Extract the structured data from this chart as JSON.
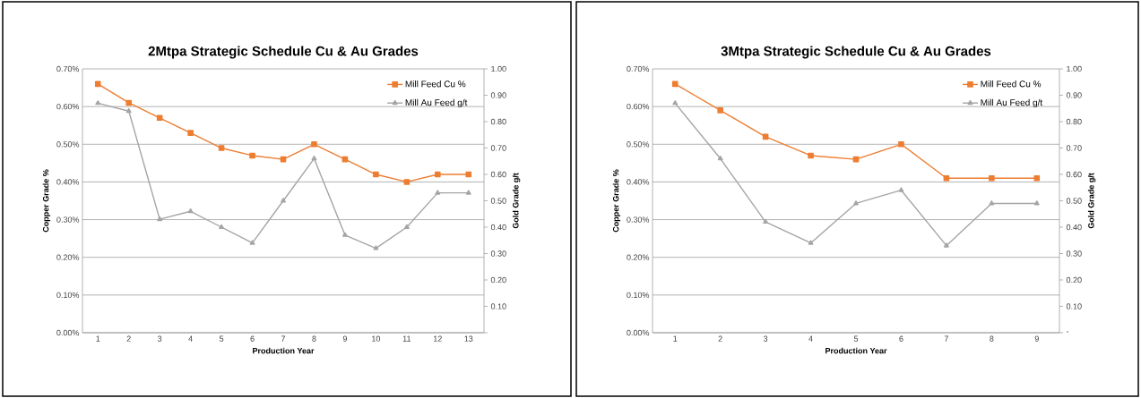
{
  "chart_data": [
    {
      "type": "line",
      "title": "2Mtpa Strategic Schedule Cu & Au Grades",
      "xlabel": "Production Year",
      "ylabel": "Copper Grade %",
      "y2label": "Gold Grade g/t",
      "categories": [
        "1",
        "2",
        "3",
        "4",
        "5",
        "6",
        "7",
        "8",
        "9",
        "10",
        "11",
        "12",
        "13"
      ],
      "series": [
        {
          "name": "Mill Feed Cu %",
          "color": "#ed7d31",
          "marker": "square",
          "values": [
            0.66,
            0.61,
            0.57,
            0.53,
            0.49,
            0.47,
            0.46,
            0.5,
            0.46,
            0.42,
            0.4,
            0.42,
            0.42
          ]
        },
        {
          "name": "Mill Au Feed g/t",
          "color": "#a5a5a5",
          "marker": "triangle",
          "axis": "y2",
          "values": [
            0.87,
            0.84,
            0.43,
            0.46,
            0.4,
            0.34,
            0.5,
            0.66,
            0.37,
            0.32,
            0.4,
            0.53,
            0.53
          ]
        }
      ],
      "ylim": [
        0,
        0.7
      ],
      "yticks": [
        {
          "value": 0,
          "label": "0.00%"
        },
        {
          "value": 0.1,
          "label": "0.10%"
        },
        {
          "value": 0.2,
          "label": "0.20%"
        },
        {
          "value": 0.3,
          "label": "0.30%"
        },
        {
          "value": 0.4,
          "label": "0.40%"
        },
        {
          "value": 0.5,
          "label": "0.50%"
        },
        {
          "value": 0.6,
          "label": "0.60%"
        },
        {
          "value": 0.7,
          "label": "0.70%"
        }
      ],
      "y2lim": [
        0,
        1
      ],
      "y2ticks": [
        {
          "value": 0,
          "label": null
        },
        {
          "value": 0.1,
          "label": "0.10"
        },
        {
          "value": 0.2,
          "label": "0.20"
        },
        {
          "value": 0.3,
          "label": "0.30"
        },
        {
          "value": 0.4,
          "label": "0.40"
        },
        {
          "value": 0.5,
          "label": "0.50"
        },
        {
          "value": 0.6,
          "label": "0.60"
        },
        {
          "value": 0.7,
          "label": "0.70"
        },
        {
          "value": 0.8,
          "label": "0.80"
        },
        {
          "value": 0.9,
          "label": "0.90"
        },
        {
          "value": 1,
          "label": "1.00"
        }
      ],
      "grid": "y",
      "legend": "top right"
    },
    {
      "type": "line",
      "title": "3Mtpa Strategic Schedule Cu & Au Grades",
      "xlabel": "Production Year",
      "ylabel": "Copper Grade %",
      "y2label": "Gold Grade g/t",
      "categories": [
        "1",
        "2",
        "3",
        "4",
        "5",
        "6",
        "7",
        "8",
        "9"
      ],
      "series": [
        {
          "name": "Mill Feed Cu %",
          "color": "#ed7d31",
          "marker": "square",
          "values": [
            0.66,
            0.59,
            0.52,
            0.47,
            0.46,
            0.5,
            0.41,
            0.41,
            0.41
          ]
        },
        {
          "name": "Mill Au Feed g/t",
          "color": "#a5a5a5",
          "marker": "triangle",
          "axis": "y2",
          "values": [
            0.87,
            0.66,
            0.42,
            0.34,
            0.49,
            0.54,
            0.33,
            0.49,
            0.49
          ]
        }
      ],
      "ylim": [
        0,
        0.7
      ],
      "yticks": [
        {
          "value": 0,
          "label": "0.00%"
        },
        {
          "value": 0.1,
          "label": "0.10%"
        },
        {
          "value": 0.2,
          "label": "0.20%"
        },
        {
          "value": 0.3,
          "label": "0.30%"
        },
        {
          "value": 0.4,
          "label": "0.40%"
        },
        {
          "value": 0.5,
          "label": "0.50%"
        },
        {
          "value": 0.6,
          "label": "0.60%"
        },
        {
          "value": 0.7,
          "label": "0.70%"
        }
      ],
      "y2lim": [
        0,
        1
      ],
      "y2ticks": [
        {
          "value": 0,
          "label": "-"
        },
        {
          "value": 0.1,
          "label": "0.10"
        },
        {
          "value": 0.2,
          "label": "0.20"
        },
        {
          "value": 0.3,
          "label": "0.30"
        },
        {
          "value": 0.4,
          "label": "0.40"
        },
        {
          "value": 0.5,
          "label": "0.50"
        },
        {
          "value": 0.6,
          "label": "0.60"
        },
        {
          "value": 0.7,
          "label": "0.70"
        },
        {
          "value": 0.8,
          "label": "0.80"
        },
        {
          "value": 0.9,
          "label": "0.90"
        },
        {
          "value": 1,
          "label": "1.00"
        }
      ],
      "grid": "y",
      "legend": "top right"
    }
  ]
}
